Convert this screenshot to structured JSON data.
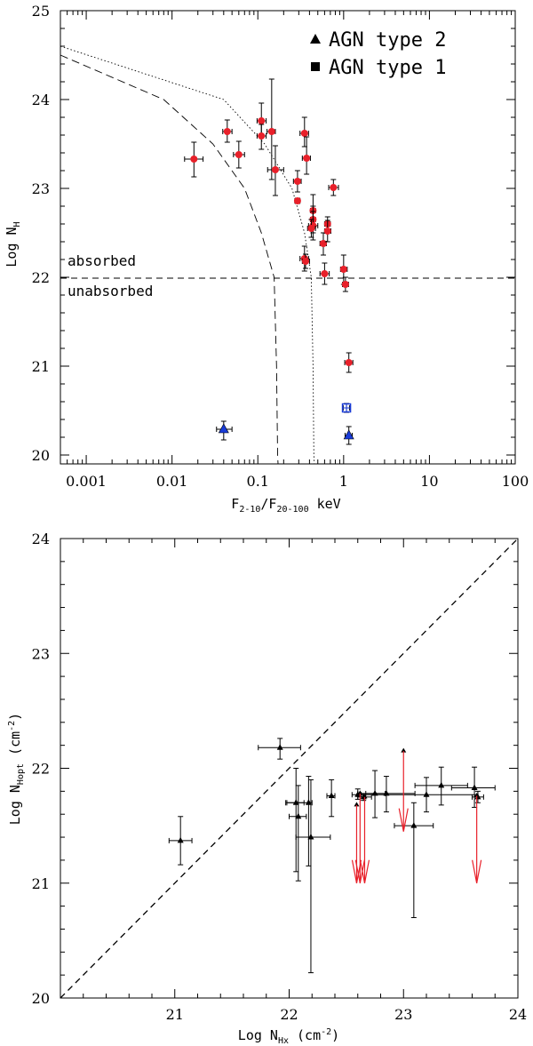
{
  "chart_data": [
    {
      "type": "scatter",
      "title": "",
      "xlabel": "F2-10/F20-100 keV",
      "xlabel_main": "F",
      "xlabel_sub1": "2-10",
      "xlabel_slash": "/F",
      "xlabel_sub2": "20-100",
      "xlabel_unit": " keV",
      "ylabel": "Log NH",
      "ylabel_main": "Log N",
      "ylabel_sub": "H",
      "xscale": "log",
      "xlim": [
        0.0005,
        100
      ],
      "ylim": [
        19.9,
        25
      ],
      "xticks": [
        "0.001",
        "0.01",
        "0.1",
        "1",
        "10",
        "100"
      ],
      "yticks": [
        "20",
        "21",
        "22",
        "23",
        "24",
        "25"
      ],
      "legend": [
        {
          "marker": "triangle",
          "label": "AGN type 2"
        },
        {
          "marker": "square",
          "label": "AGN type 1"
        }
      ],
      "legend_position": "top-right",
      "annotations": [
        "absorbed",
        "unabsorbed"
      ],
      "threshold_logNH": 22,
      "series": [
        {
          "name": "absorbed sources",
          "color": "#e8202a",
          "points": [
            {
              "x": 0.018,
              "y": 23.33,
              "xlo": 0.014,
              "xhi": 0.023,
              "ylo": 23.13,
              "yhi": 23.52
            },
            {
              "x": 0.044,
              "y": 23.64,
              "xlo": 0.039,
              "xhi": 0.05,
              "ylo": 23.52,
              "yhi": 23.77
            },
            {
              "x": 0.06,
              "y": 23.38,
              "xlo": 0.052,
              "xhi": 0.07,
              "ylo": 23.23,
              "yhi": 23.53
            },
            {
              "x": 0.11,
              "y": 23.76,
              "xlo": 0.098,
              "xhi": 0.125,
              "ylo": 23.58,
              "yhi": 23.96
            },
            {
              "x": 0.11,
              "y": 23.59,
              "xlo": 0.098,
              "xhi": 0.125,
              "ylo": 23.44,
              "yhi": 23.72
            },
            {
              "x": 0.145,
              "y": 23.64,
              "xlo": 0.128,
              "xhi": 0.16,
              "ylo": 23.1,
              "yhi": 24.23
            },
            {
              "x": 0.16,
              "y": 23.21,
              "xlo": 0.13,
              "xhi": 0.2,
              "ylo": 22.92,
              "yhi": 23.48
            },
            {
              "x": 0.29,
              "y": 23.08,
              "xlo": 0.26,
              "xhi": 0.32,
              "ylo": 22.96,
              "yhi": 23.2
            },
            {
              "x": 0.29,
              "y": 22.86,
              "xlo": 0.27,
              "xhi": 0.31,
              "ylo": 22.83,
              "yhi": 22.89
            },
            {
              "x": 0.35,
              "y": 23.62,
              "xlo": 0.31,
              "xhi": 0.39,
              "ylo": 23.47,
              "yhi": 23.8
            },
            {
              "x": 0.37,
              "y": 23.34,
              "xlo": 0.33,
              "xhi": 0.41,
              "ylo": 23.16,
              "yhi": 23.58
            },
            {
              "x": 0.35,
              "y": 22.21,
              "xlo": 0.31,
              "xhi": 0.39,
              "ylo": 22.07,
              "yhi": 22.35
            },
            {
              "x": 0.36,
              "y": 22.18,
              "xlo": 0.33,
              "xhi": 0.4,
              "ylo": 22.1,
              "yhi": 22.26
            },
            {
              "x": 0.44,
              "y": 22.75,
              "xlo": 0.41,
              "xhi": 0.47,
              "ylo": 22.58,
              "yhi": 22.93
            },
            {
              "x": 0.44,
              "y": 22.65,
              "xlo": 0.41,
              "xhi": 0.47,
              "ylo": 22.5,
              "yhi": 22.8
            },
            {
              "x": 0.44,
              "y": 22.58,
              "xlo": 0.39,
              "xhi": 0.5,
              "ylo": 22.42,
              "yhi": 22.74
            },
            {
              "x": 0.42,
              "y": 22.55,
              "xlo": 0.38,
              "xhi": 0.47,
              "ylo": 22.45,
              "yhi": 22.65
            },
            {
              "x": 0.58,
              "y": 22.38,
              "xlo": 0.53,
              "xhi": 0.63,
              "ylo": 22.25,
              "yhi": 22.5
            },
            {
              "x": 0.65,
              "y": 22.6,
              "xlo": 0.6,
              "xhi": 0.7,
              "ylo": 22.52,
              "yhi": 22.68
            },
            {
              "x": 0.65,
              "y": 22.52,
              "xlo": 0.6,
              "xhi": 0.71,
              "ylo": 22.4,
              "yhi": 22.64
            },
            {
              "x": 0.76,
              "y": 23.01,
              "xlo": 0.67,
              "xhi": 0.87,
              "ylo": 22.92,
              "yhi": 23.1
            },
            {
              "x": 0.6,
              "y": 22.04,
              "xlo": 0.53,
              "xhi": 0.68,
              "ylo": 21.92,
              "yhi": 22.16
            },
            {
              "x": 1.0,
              "y": 22.09,
              "xlo": 0.92,
              "xhi": 1.1,
              "ylo": 21.92,
              "yhi": 22.25
            },
            {
              "x": 1.05,
              "y": 21.92,
              "xlo": 0.97,
              "xhi": 1.14,
              "ylo": 21.84,
              "yhi": 22.0
            },
            {
              "x": 1.15,
              "y": 21.04,
              "xlo": 1.03,
              "xhi": 1.28,
              "ylo": 20.93,
              "yhi": 21.15
            }
          ]
        },
        {
          "name": "unabsorbed sources",
          "color": "#1a3cd8",
          "points": [
            {
              "x": 0.04,
              "y": 20.29,
              "marker": "triangle",
              "xlo": 0.033,
              "xhi": 0.05,
              "ylo": 20.17,
              "yhi": 20.38
            },
            {
              "x": 1.08,
              "y": 20.53,
              "marker": "square",
              "xlo": 0.99,
              "xhi": 1.17,
              "ylo": 20.48,
              "yhi": 20.58
            },
            {
              "x": 1.15,
              "y": 20.22,
              "marker": "triangle",
              "xlo": 1.04,
              "xhi": 1.26,
              "ylo": 20.12,
              "yhi": 20.32
            }
          ]
        },
        {
          "name": "dashed model curve",
          "style": "dashed",
          "line": [
            [
              0.0005,
              24.5
            ],
            [
              0.008,
              24.0
            ],
            [
              0.03,
              23.5
            ],
            [
              0.07,
              23.0
            ],
            [
              0.11,
              22.5
            ],
            [
              0.155,
              22.0
            ],
            [
              0.165,
              21.0
            ],
            [
              0.17,
              20.0
            ],
            [
              0.172,
              19.9
            ]
          ]
        },
        {
          "name": "dotted model curve",
          "style": "dotted",
          "line": [
            [
              0.0005,
              24.6
            ],
            [
              0.04,
              24.0
            ],
            [
              0.12,
              23.5
            ],
            [
              0.25,
              23.0
            ],
            [
              0.35,
              22.5
            ],
            [
              0.42,
              22.0
            ],
            [
              0.44,
              21.0
            ],
            [
              0.45,
              20.0
            ],
            [
              0.455,
              19.9
            ]
          ]
        }
      ]
    },
    {
      "type": "scatter",
      "title": "",
      "xlabel": "Log NHx (cm-2)",
      "xlabel_main": "Log N",
      "xlabel_sub": "Hx",
      "xlabel_unit": " (cm",
      "xlabel_exp": "-2",
      "xlabel_close": ")",
      "ylabel": "Log NHopt (cm-2)",
      "ylabel_main": "Log N",
      "ylabel_sub": "Hopt",
      "ylabel_unit": " (cm",
      "ylabel_exp": "-2",
      "ylabel_close": ")",
      "xlim": [
        20,
        24
      ],
      "ylim": [
        20,
        24
      ],
      "xticks": [
        "21",
        "22",
        "23",
        "24"
      ],
      "yticks": [
        "20",
        "21",
        "22",
        "23",
        "24"
      ],
      "reference_line": {
        "style": "dashed",
        "from": [
          20,
          20
        ],
        "to": [
          24,
          24
        ]
      },
      "series": [
        {
          "name": "measurements",
          "color": "#000000",
          "points": [
            {
              "x": 21.05,
              "y": 21.37,
              "xlo": 20.95,
              "xhi": 21.15,
              "ylo": 21.16,
              "yhi": 21.58
            },
            {
              "x": 21.92,
              "y": 22.18,
              "xlo": 21.73,
              "xhi": 22.1,
              "ylo": 22.08,
              "yhi": 22.26
            },
            {
              "x": 22.06,
              "y": 21.7,
              "xlo": 21.98,
              "xhi": 22.13,
              "ylo": 21.1,
              "yhi": 22.0
            },
            {
              "x": 22.08,
              "y": 21.58,
              "xlo": 22.0,
              "xhi": 22.15,
              "ylo": 21.02,
              "yhi": 21.85
            },
            {
              "x": 22.17,
              "y": 21.7,
              "xlo": 21.97,
              "xhi": 22.2,
              "ylo": 21.15,
              "yhi": 21.93
            },
            {
              "x": 22.19,
              "y": 21.4,
              "xlo": 22.06,
              "xhi": 22.36,
              "ylo": 20.22,
              "yhi": 21.9
            },
            {
              "x": 22.37,
              "y": 21.76,
              "xlo": 22.33,
              "xhi": 22.4,
              "ylo": 21.58,
              "yhi": 21.9
            },
            {
              "x": 22.6,
              "y": 21.77,
              "xlo": 22.55,
              "xhi": 22.63,
              "ylo": 21.73,
              "yhi": 21.82
            },
            {
              "x": 22.65,
              "y": 21.75,
              "xlo": 22.6,
              "xhi": 22.72,
              "ylo": 21.72,
              "yhi": 21.78
            },
            {
              "x": 22.75,
              "y": 21.78,
              "xlo": 22.67,
              "xhi": 22.84,
              "ylo": 21.57,
              "yhi": 21.98
            },
            {
              "x": 22.85,
              "y": 21.78,
              "xlo": 22.6,
              "xhi": 23.1,
              "ylo": 21.62,
              "yhi": 21.93
            },
            {
              "x": 23.09,
              "y": 21.5,
              "xlo": 22.92,
              "xhi": 23.26,
              "ylo": 20.7,
              "yhi": 21.7
            },
            {
              "x": 23.2,
              "y": 21.77,
              "xlo": 22.6,
              "xhi": 23.65,
              "ylo": 21.62,
              "yhi": 21.92
            },
            {
              "x": 23.33,
              "y": 21.85,
              "xlo": 23.1,
              "xhi": 23.56,
              "ylo": 21.68,
              "yhi": 22.01
            },
            {
              "x": 23.62,
              "y": 21.83,
              "xlo": 23.42,
              "xhi": 23.8,
              "ylo": 21.66,
              "yhi": 22.01
            },
            {
              "x": 23.65,
              "y": 21.75,
              "xlo": 23.6,
              "xhi": 23.7,
              "ylo": 21.7,
              "yhi": 21.8
            }
          ]
        },
        {
          "name": "upper limits",
          "color": "#e8202a",
          "arrows": [
            {
              "x": 22.59,
              "y_top": 21.68,
              "y_bottom": 21.0
            },
            {
              "x": 22.62,
              "y_top": 21.78,
              "y_bottom": 21.0
            },
            {
              "x": 22.66,
              "y_top": 21.75,
              "y_bottom": 21.0
            },
            {
              "x": 23.0,
              "y_top": 22.15,
              "y_bottom": 21.45
            },
            {
              "x": 23.64,
              "y_top": 21.76,
              "y_bottom": 21.0
            }
          ]
        }
      ]
    }
  ]
}
